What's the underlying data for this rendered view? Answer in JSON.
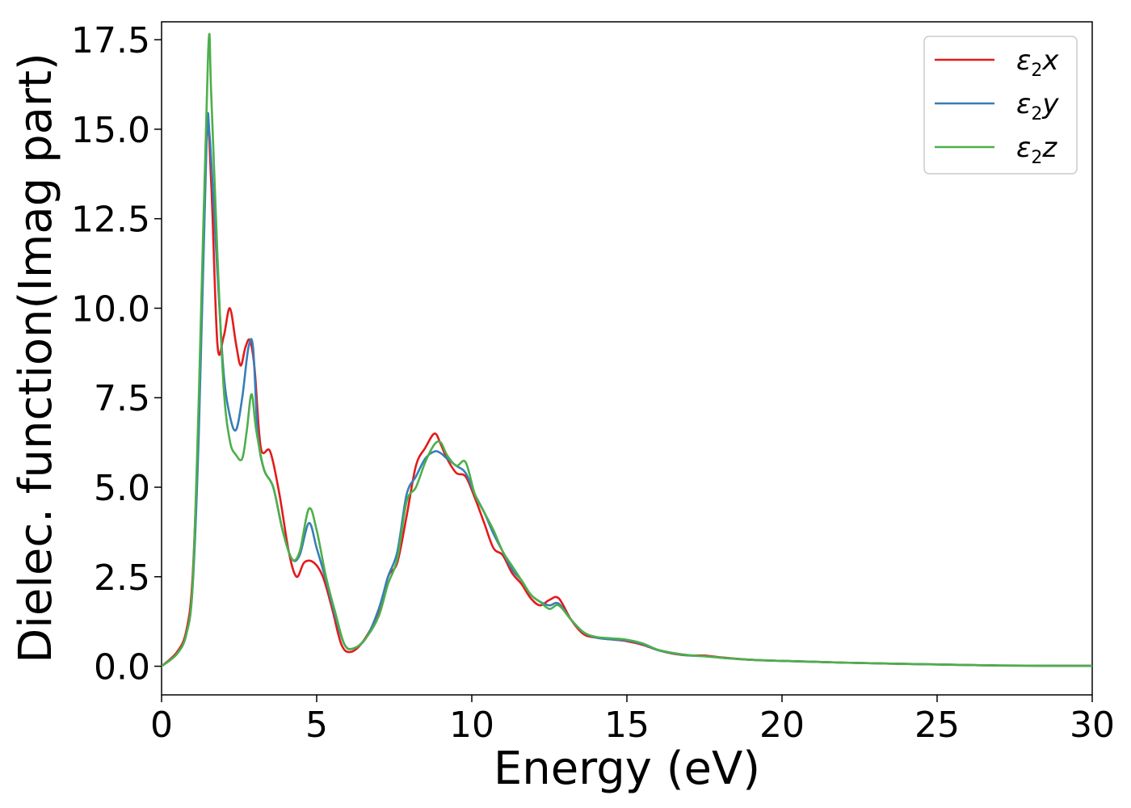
{
  "chart_data": {
    "type": "line",
    "title": "",
    "xlabel": "Energy (eV)",
    "ylabel": "Dielec. function(Imag part)",
    "xlim": [
      0,
      30
    ],
    "ylim": [
      -0.8,
      18.0
    ],
    "xticks": [
      0,
      5,
      10,
      15,
      20,
      25,
      30
    ],
    "xtick_labels": [
      "0",
      "5",
      "10",
      "15",
      "20",
      "25",
      "30"
    ],
    "yticks": [
      0.0,
      2.5,
      5.0,
      7.5,
      10.0,
      12.5,
      15.0,
      17.5
    ],
    "ytick_labels": [
      "0.0",
      "2.5",
      "5.0",
      "7.5",
      "10.0",
      "12.5",
      "15.0",
      "17.5"
    ],
    "grid": false,
    "legend": "top-right",
    "series": [
      {
        "name": "ε2x",
        "legend_base": "ε",
        "legend_sub": "2",
        "legend_tail": "x",
        "color": "#e41a1c",
        "x": [
          0,
          0.5,
          0.8,
          1.0,
          1.2,
          1.45,
          1.6,
          1.8,
          2.0,
          2.2,
          2.4,
          2.55,
          2.7,
          2.85,
          3.0,
          3.2,
          3.5,
          3.8,
          4.1,
          4.35,
          4.6,
          4.9,
          5.2,
          5.5,
          5.8,
          6.1,
          6.5,
          7.0,
          7.3,
          7.6,
          7.9,
          8.2,
          8.5,
          8.8,
          9.0,
          9.2,
          9.5,
          9.8,
          10.1,
          10.4,
          10.7,
          11.0,
          11.3,
          11.6,
          11.9,
          12.2,
          12.5,
          12.8,
          13.2,
          13.6,
          14.0,
          14.5,
          15.0,
          15.5,
          16.0,
          16.5,
          17.0,
          17.5,
          18.0,
          19.0,
          20.0,
          22.0,
          25.0,
          27.0,
          30.0
        ],
        "y": [
          0.0,
          0.4,
          1.0,
          2.5,
          7.0,
          14.8,
          13.5,
          9.0,
          9.2,
          10.0,
          9.0,
          8.4,
          8.9,
          9.1,
          8.3,
          6.1,
          6.0,
          4.8,
          3.2,
          2.5,
          2.9,
          2.9,
          2.5,
          1.6,
          0.6,
          0.4,
          0.7,
          1.5,
          2.5,
          2.9,
          4.2,
          5.6,
          6.1,
          6.5,
          6.2,
          5.8,
          5.4,
          5.3,
          4.7,
          4.0,
          3.3,
          3.1,
          2.6,
          2.3,
          1.9,
          1.7,
          1.85,
          1.9,
          1.3,
          0.9,
          0.8,
          0.75,
          0.7,
          0.6,
          0.45,
          0.35,
          0.3,
          0.3,
          0.25,
          0.18,
          0.15,
          0.1,
          0.05,
          0.02,
          0.01
        ]
      },
      {
        "name": "ε2y",
        "legend_base": "ε",
        "legend_sub": "2",
        "legend_tail": "y",
        "color": "#377eb8",
        "x": [
          0,
          0.5,
          0.8,
          1.0,
          1.2,
          1.45,
          1.55,
          1.8,
          2.0,
          2.2,
          2.4,
          2.6,
          2.8,
          2.95,
          3.1,
          3.3,
          3.6,
          3.9,
          4.2,
          4.45,
          4.75,
          5.0,
          5.3,
          5.6,
          5.9,
          6.2,
          6.6,
          7.0,
          7.3,
          7.6,
          7.9,
          8.2,
          8.5,
          8.8,
          9.0,
          9.2,
          9.5,
          9.8,
          10.1,
          10.4,
          10.7,
          11.0,
          11.3,
          11.6,
          11.9,
          12.2,
          12.5,
          12.8,
          13.2,
          13.6,
          14.0,
          14.5,
          15.0,
          15.5,
          16.0,
          16.5,
          17.0,
          17.5,
          18.0,
          19.0,
          20.0,
          22.0,
          25.0,
          27.0,
          30.0
        ],
        "y": [
          0.0,
          0.35,
          0.9,
          2.2,
          6.5,
          14.6,
          14.8,
          11.0,
          8.2,
          7.0,
          6.6,
          7.5,
          8.9,
          8.9,
          6.5,
          5.5,
          5.0,
          3.8,
          3.0,
          3.1,
          4.0,
          3.3,
          2.4,
          1.4,
          0.6,
          0.5,
          0.8,
          1.6,
          2.5,
          3.2,
          4.8,
          5.3,
          5.8,
          6.0,
          5.95,
          5.8,
          5.6,
          5.4,
          4.8,
          4.3,
          3.7,
          3.2,
          2.7,
          2.4,
          2.0,
          1.8,
          1.7,
          1.75,
          1.3,
          0.95,
          0.8,
          0.75,
          0.72,
          0.62,
          0.45,
          0.36,
          0.3,
          0.28,
          0.24,
          0.18,
          0.15,
          0.1,
          0.05,
          0.02,
          0.01
        ]
      },
      {
        "name": "ε2z",
        "legend_base": "ε",
        "legend_sub": "2",
        "legend_tail": "z",
        "color": "#4daf4a",
        "x": [
          0,
          0.5,
          0.8,
          1.0,
          1.2,
          1.5,
          1.6,
          1.8,
          2.0,
          2.2,
          2.4,
          2.6,
          2.75,
          2.9,
          3.05,
          3.3,
          3.6,
          3.9,
          4.2,
          4.45,
          4.75,
          5.0,
          5.3,
          5.6,
          5.9,
          6.2,
          6.6,
          7.0,
          7.3,
          7.6,
          7.9,
          8.2,
          8.5,
          8.8,
          9.0,
          9.2,
          9.5,
          9.8,
          10.1,
          10.4,
          10.7,
          11.0,
          11.3,
          11.6,
          11.9,
          12.2,
          12.5,
          12.8,
          13.2,
          13.6,
          14.0,
          14.5,
          15.0,
          15.5,
          16.0,
          16.5,
          17.0,
          17.5,
          18.0,
          19.0,
          20.0,
          22.0,
          25.0,
          27.0,
          30.0
        ],
        "y": [
          0.0,
          0.35,
          0.9,
          2.3,
          7.5,
          17.1,
          16.0,
          11.5,
          7.8,
          6.3,
          5.9,
          5.8,
          6.6,
          7.6,
          6.6,
          5.5,
          5.0,
          3.8,
          3.0,
          3.2,
          4.4,
          3.8,
          2.5,
          1.5,
          0.6,
          0.5,
          0.8,
          1.4,
          2.3,
          3.0,
          4.6,
          5.0,
          5.7,
          6.2,
          6.25,
          5.9,
          5.6,
          5.7,
          4.8,
          4.3,
          3.8,
          3.2,
          2.8,
          2.4,
          2.0,
          1.8,
          1.6,
          1.7,
          1.3,
          0.95,
          0.82,
          0.78,
          0.74,
          0.64,
          0.46,
          0.37,
          0.31,
          0.28,
          0.24,
          0.18,
          0.15,
          0.1,
          0.05,
          0.02,
          0.01
        ]
      }
    ]
  }
}
